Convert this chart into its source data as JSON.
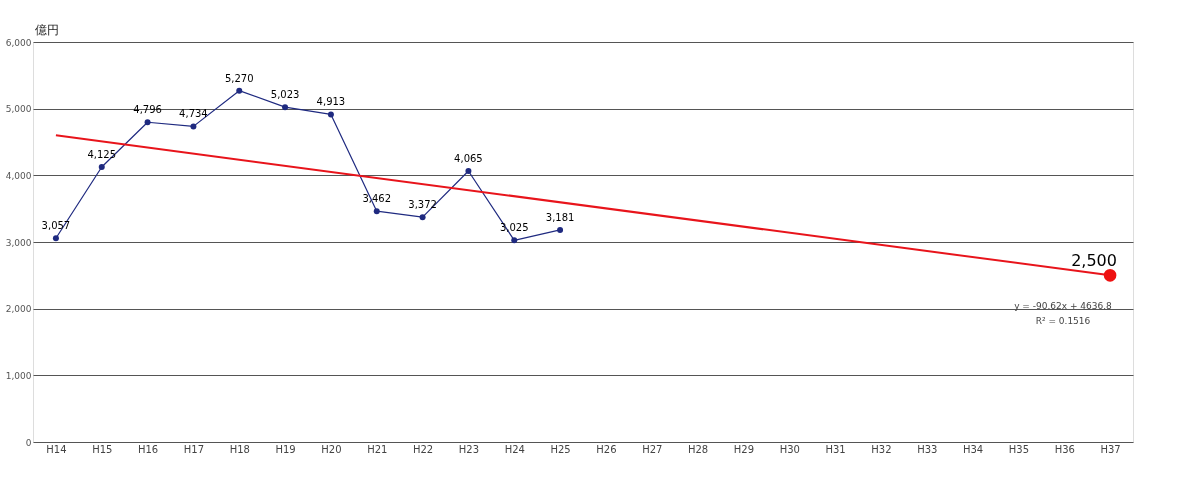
{
  "chart_data": {
    "type": "line",
    "ylabel": "億円",
    "categories": [
      "H14",
      "H15",
      "H16",
      "H17",
      "H18",
      "H19",
      "H20",
      "H21",
      "H22",
      "H23",
      "H24",
      "H25",
      "H26",
      "H27",
      "H28",
      "H29",
      "H30",
      "H31",
      "H32",
      "H33",
      "H34",
      "H35",
      "H36",
      "H37"
    ],
    "series": [
      {
        "color": "#1f2a80",
        "marker": "circle",
        "values": [
          3057,
          4125,
          4796,
          4734,
          5270,
          5023,
          4913,
          3462,
          3372,
          4065,
          3025,
          3181,
          null,
          null,
          null,
          null,
          null,
          null,
          null,
          null,
          null,
          null,
          null,
          null
        ],
        "value_labels": [
          "3,057",
          "4,125",
          "4,796",
          "4,734",
          "5,270",
          "5,023",
          "4,913",
          "3,462",
          "3,372",
          "4,065",
          "3,025",
          "3,181",
          null,
          null,
          null,
          null,
          null,
          null,
          null,
          null,
          null,
          null,
          null,
          null
        ]
      },
      {
        "type": "line",
        "color": "#e8141b",
        "x": [
          "H14",
          "H37"
        ],
        "values": [
          4600,
          2500
        ]
      },
      {
        "type": "scatter",
        "color": "#ee1111",
        "x": [
          "H37"
        ],
        "values": [
          2500
        ],
        "value_labels": [
          "2,500"
        ]
      }
    ],
    "ylim": [
      0,
      6000
    ],
    "yticks": [
      {
        "value": 0,
        "label": "0"
      },
      {
        "value": 1000,
        "label": "1,000"
      },
      {
        "value": 2000,
        "label": "2,000"
      },
      {
        "value": 3000,
        "label": "3,000"
      },
      {
        "value": 4000,
        "label": "4,000"
      },
      {
        "value": 5000,
        "label": "5,000"
      },
      {
        "value": 6000,
        "label": "6,000"
      }
    ],
    "grid": "y",
    "annotations": [
      "y = -90.62x + 4636.8",
      "R² = 0.1516"
    ]
  }
}
